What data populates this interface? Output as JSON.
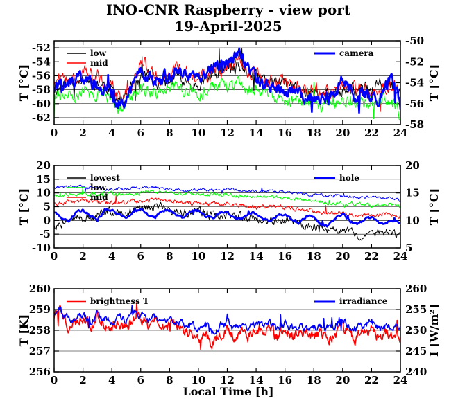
{
  "title": "INO-CNR Raspberry - view port",
  "subtitle": "19-April-2025",
  "xlabel": "Local Time [h]",
  "colors": {
    "black": "#000000",
    "red": "#ff0000",
    "green": "#00ff00",
    "blue": "#0000ff"
  },
  "chart_data": [
    {
      "type": "line",
      "xlim": [
        0,
        24
      ],
      "xticks": [
        "0",
        "2",
        "4",
        "6",
        "8",
        "10",
        "12",
        "14",
        "16",
        "18",
        "20",
        "22",
        "24"
      ],
      "ylabel": "T [°C]",
      "ylim": [
        -63,
        -51
      ],
      "yticks": [
        "-62",
        "-60",
        "-58",
        "-56",
        "-54",
        "-52"
      ],
      "y2label": "T [°C]",
      "y2lim": [
        -58,
        -50
      ],
      "y2ticks": [
        "-58",
        "-56",
        "-54",
        "-52",
        "-50"
      ],
      "grid": true,
      "legend_left": [
        "low",
        "mid"
      ],
      "legend_right": [
        "camera"
      ],
      "series": [
        {
          "name": "low",
          "color": "#000000",
          "axis": "left",
          "approximate": true,
          "x": [
            0,
            1,
            2,
            3,
            4,
            4.6,
            5,
            5.5,
            6,
            6.5,
            7,
            8,
            8.5,
            9,
            10,
            11,
            12,
            13,
            14,
            15,
            16,
            17,
            18,
            18.5,
            19,
            20,
            21,
            22,
            23,
            23.6,
            24
          ],
          "y": [
            -58,
            -57,
            -56.5,
            -57,
            -58,
            -59.5,
            -59,
            -57,
            -56,
            -56,
            -57,
            -57,
            -56,
            -57,
            -57,
            -56,
            -55,
            -55,
            -56,
            -57,
            -57,
            -58,
            -58,
            -59,
            -58.5,
            -58,
            -58,
            -58,
            -57,
            -58,
            -59
          ]
        },
        {
          "name": "mid",
          "color": "#ff0000",
          "axis": "left",
          "approximate": true,
          "x": [
            0,
            1,
            2,
            3,
            4,
            4.6,
            5,
            5.5,
            6,
            6.5,
            7,
            8,
            8.5,
            9,
            10,
            11,
            12,
            13,
            14,
            15,
            16,
            17,
            18,
            18.5,
            19,
            20,
            21,
            22,
            23,
            23.6,
            24
          ],
          "y": [
            -57,
            -56,
            -55.5,
            -56,
            -57.5,
            -59.5,
            -59,
            -57,
            -54,
            -54.5,
            -56.5,
            -56.5,
            -55,
            -56,
            -56.5,
            -55.5,
            -54.5,
            -54.5,
            -55.5,
            -56.5,
            -57,
            -57.5,
            -58,
            -59,
            -58.5,
            -58,
            -58,
            -58,
            -57,
            -57.5,
            -59
          ]
        },
        {
          "name": "",
          "color": "#00ff00",
          "axis": "left",
          "approximate": true,
          "x": [
            0,
            1,
            2,
            3,
            4,
            4.6,
            5,
            5.5,
            6,
            6.5,
            7,
            8,
            8.5,
            9,
            10,
            11,
            12,
            13,
            14,
            15,
            16,
            17,
            18,
            18.5,
            19,
            20,
            21,
            22,
            23,
            23.6,
            24
          ],
          "y": [
            -59,
            -58.5,
            -58,
            -58.5,
            -59,
            -61,
            -60,
            -59,
            -58,
            -58,
            -58.5,
            -58,
            -57.5,
            -58,
            -58.5,
            -58,
            -57.5,
            -57.5,
            -58,
            -59,
            -59.5,
            -59.5,
            -60,
            -60.5,
            -60,
            -59.5,
            -60,
            -60,
            -59.5,
            -60,
            -62
          ]
        },
        {
          "name": "camera",
          "color": "#0000ff",
          "axis": "right",
          "approximate": true,
          "x": [
            0,
            1,
            2,
            3,
            4,
            4.6,
            5,
            5.5,
            6,
            6.5,
            7,
            8,
            8.5,
            9,
            10,
            11,
            12,
            12.9,
            13.3,
            14,
            15,
            16,
            17,
            18,
            18.6,
            19,
            19.5,
            20,
            20.4,
            21,
            22,
            22.5,
            23,
            23.3,
            23.7,
            24
          ],
          "y": [
            -54.5,
            -54,
            -53.5,
            -54.3,
            -55,
            -56,
            -55.5,
            -54.5,
            -52.8,
            -53.2,
            -53.8,
            -53.2,
            -52.6,
            -53.2,
            -53.2,
            -52.8,
            -52,
            -51.2,
            -52.2,
            -53.5,
            -54.3,
            -54.7,
            -55,
            -55.3,
            -55.8,
            -55.4,
            -55,
            -53.2,
            -54.5,
            -55.2,
            -55.4,
            -55.5,
            -54.5,
            -53.2,
            -54.5,
            -56.2
          ]
        }
      ]
    },
    {
      "type": "line",
      "xlim": [
        0,
        24
      ],
      "xticks": [
        "0",
        "2",
        "4",
        "6",
        "8",
        "10",
        "12",
        "14",
        "16",
        "18",
        "20",
        "22",
        "24"
      ],
      "ylabel": "T [°C]",
      "ylim": [
        -10,
        20
      ],
      "yticks": [
        "-10",
        "-5",
        "0",
        "5",
        "10",
        "15",
        "20"
      ],
      "y2label": "T [°C]",
      "y2lim": [
        5,
        20
      ],
      "y2ticks": [
        "5",
        "10",
        "15",
        "20"
      ],
      "grid": true,
      "legend_left": [
        "lowest",
        "low",
        "mid"
      ],
      "legend_right": [
        "hole"
      ],
      "series": [
        {
          "name": "lowest",
          "color": "#000000",
          "axis": "left",
          "approximate": true,
          "x": [
            0,
            1,
            2,
            3,
            4,
            5,
            6,
            7,
            8,
            9,
            10,
            11,
            12,
            13,
            14,
            15,
            16,
            17,
            18,
            19,
            20,
            21,
            22,
            23,
            24
          ],
          "y": [
            -2,
            0,
            1,
            2,
            3,
            3,
            4,
            5,
            4,
            3,
            3,
            2,
            2,
            1,
            1,
            0,
            0,
            -1,
            -2,
            -3,
            -4,
            -5,
            -5,
            -4,
            -6
          ]
        },
        {
          "name": "low",
          "color": "#00ff00",
          "axis": "left",
          "approximate": true,
          "x": [
            0,
            1,
            2,
            3,
            4,
            5,
            6,
            7,
            8,
            9,
            10,
            11,
            12,
            13,
            14,
            15,
            16,
            17,
            18,
            19,
            20,
            21,
            22,
            23,
            24
          ],
          "y": [
            9,
            9.5,
            10,
            9.5,
            9.5,
            9.5,
            10,
            10.5,
            10,
            10,
            9.5,
            9.5,
            9.5,
            9,
            8.5,
            8.5,
            8,
            7.5,
            7,
            6.5,
            6.5,
            6,
            5.5,
            6,
            5
          ]
        },
        {
          "name": "mid",
          "color": "#ff0000",
          "axis": "left",
          "approximate": true,
          "x": [
            0,
            1,
            2,
            3,
            4,
            5,
            6,
            7,
            8,
            9,
            10,
            11,
            12,
            13,
            14,
            15,
            16,
            17,
            18,
            19,
            20,
            21,
            22,
            23,
            24
          ],
          "y": [
            6,
            6.5,
            7,
            6.5,
            6.5,
            6.5,
            7,
            7.5,
            7,
            6.5,
            6,
            6,
            6,
            5.5,
            5,
            5,
            4.5,
            4,
            3.5,
            3,
            2.5,
            2,
            2,
            2.5,
            1.5
          ]
        },
        {
          "name": "",
          "color": "#0000ff",
          "axis": "left",
          "approximate": true,
          "x": [
            0,
            1,
            2,
            3,
            4,
            5,
            6,
            7,
            8,
            9,
            10,
            11,
            12,
            13,
            14,
            15,
            16,
            17,
            18,
            19,
            20,
            21,
            22,
            23,
            24
          ],
          "y": [
            12,
            12.5,
            12,
            12,
            11.5,
            11.5,
            12,
            12,
            11.5,
            11,
            11,
            11,
            11.5,
            11,
            10.5,
            10.5,
            10,
            10,
            9.5,
            9,
            9,
            8.5,
            8.5,
            8.5,
            7
          ]
        },
        {
          "name": "hole",
          "color": "#0000ff",
          "axis": "right",
          "approximate": true,
          "x": [
            0,
            0.5,
            1,
            1.5,
            2,
            2.5,
            3,
            3.5,
            4,
            4.5,
            5,
            5.5,
            6,
            6.5,
            7,
            7.5,
            8,
            8.5,
            9,
            9.5,
            10,
            10.5,
            11,
            11.5,
            12,
            12.5,
            13,
            13.5,
            14,
            14.5,
            15,
            15.5,
            16,
            16.5,
            17,
            17.5,
            18,
            18.5,
            19,
            19.5,
            20,
            20.5,
            21,
            21.5,
            22,
            22.5,
            23,
            23.5,
            24
          ],
          "y": [
            11.5,
            10.5,
            10,
            11.5,
            12,
            10.8,
            10,
            11.8,
            12,
            11.2,
            10.3,
            11.5,
            12,
            11,
            10.5,
            11.8,
            12,
            10.8,
            10.5,
            11.7,
            11.8,
            10.8,
            10.5,
            11.5,
            11.6,
            10.4,
            10.3,
            11.4,
            11.3,
            10.2,
            10,
            11,
            11.2,
            10.1,
            9.5,
            10.8,
            10.5,
            9.3,
            9,
            10.5,
            11.3,
            9.8,
            9.3,
            10.2,
            10.5,
            9.6,
            9.5,
            10,
            9.4
          ]
        }
      ]
    },
    {
      "type": "line",
      "xlim": [
        0,
        24
      ],
      "xticks": [
        "0",
        "2",
        "4",
        "6",
        "8",
        "10",
        "12",
        "14",
        "16",
        "18",
        "20",
        "22",
        "24"
      ],
      "ylabel": "T [K]",
      "ylim": [
        256,
        260
      ],
      "yticks": [
        "256",
        "257",
        "258",
        "259",
        "260"
      ],
      "y2label": "I [W/m²]",
      "y2lim": [
        240,
        260
      ],
      "y2ticks": [
        "240",
        "245",
        "250",
        "255",
        "260"
      ],
      "grid": true,
      "legend_left": [
        "brightness T"
      ],
      "legend_right": [
        "irradiance"
      ],
      "series": [
        {
          "name": "brightness T",
          "color": "#ff0000",
          "axis": "left",
          "approximate": true,
          "x": [
            0,
            0.3,
            0.6,
            1,
            1.5,
            2,
            2.5,
            3,
            3.5,
            4,
            4.5,
            5,
            5.5,
            6,
            6.5,
            7,
            7.5,
            8,
            8.5,
            9,
            9.5,
            10,
            10.5,
            11,
            11.5,
            12,
            12.5,
            13,
            13.5,
            14,
            14.5,
            15,
            15.5,
            16,
            16.5,
            17,
            17.5,
            18,
            18.5,
            19,
            19.5,
            20,
            20.5,
            21,
            21.5,
            22,
            22.5,
            23,
            23.5,
            24
          ],
          "y": [
            258.8,
            259.1,
            258.6,
            258.2,
            258.4,
            258.6,
            258.1,
            258.7,
            258.3,
            258.2,
            258.5,
            258.2,
            258.6,
            258.6,
            258.3,
            258.5,
            258.2,
            258.3,
            258.1,
            258.0,
            257.9,
            257.6,
            257.8,
            257.4,
            257.8,
            258.0,
            257.7,
            258.1,
            257.7,
            258.0,
            257.9,
            258.0,
            257.6,
            258.0,
            257.7,
            257.8,
            257.8,
            257.6,
            257.9,
            257.6,
            257.8,
            258.1,
            257.8,
            257.6,
            257.9,
            258.0,
            257.7,
            257.9,
            257.7,
            257.6
          ]
        },
        {
          "name": "irradiance",
          "color": "#0000ff",
          "axis": "right",
          "approximate": true,
          "x": [
            0,
            0.3,
            0.6,
            1,
            1.5,
            2,
            2.5,
            3,
            3.5,
            4,
            4.5,
            5,
            5.5,
            6,
            6.5,
            7,
            7.5,
            8,
            8.5,
            9,
            9.5,
            10,
            10.5,
            11,
            11.5,
            12,
            12.5,
            13,
            13.5,
            14,
            14.5,
            15,
            15.5,
            16,
            16.5,
            17,
            17.5,
            18,
            18.5,
            19,
            19.5,
            20,
            20.5,
            21,
            21.5,
            22,
            22.5,
            23,
            23.5,
            24
          ],
          "y": [
            254.5,
            256.0,
            254.0,
            252.5,
            253.2,
            253.8,
            251.8,
            254.3,
            252.8,
            252.3,
            253.6,
            252.3,
            253.8,
            253.7,
            252.6,
            253.4,
            252.3,
            252.8,
            251.8,
            251.6,
            251.2,
            250.3,
            251.2,
            249.5,
            251.0,
            251.6,
            250.5,
            252.0,
            250.5,
            251.5,
            251.2,
            251.6,
            250.0,
            251.5,
            250.5,
            251.0,
            250.8,
            250.2,
            251.6,
            250.5,
            251.3,
            252.8,
            251.2,
            250.6,
            251.6,
            252.0,
            250.8,
            251.4,
            250.6,
            250.4
          ]
        }
      ]
    }
  ]
}
